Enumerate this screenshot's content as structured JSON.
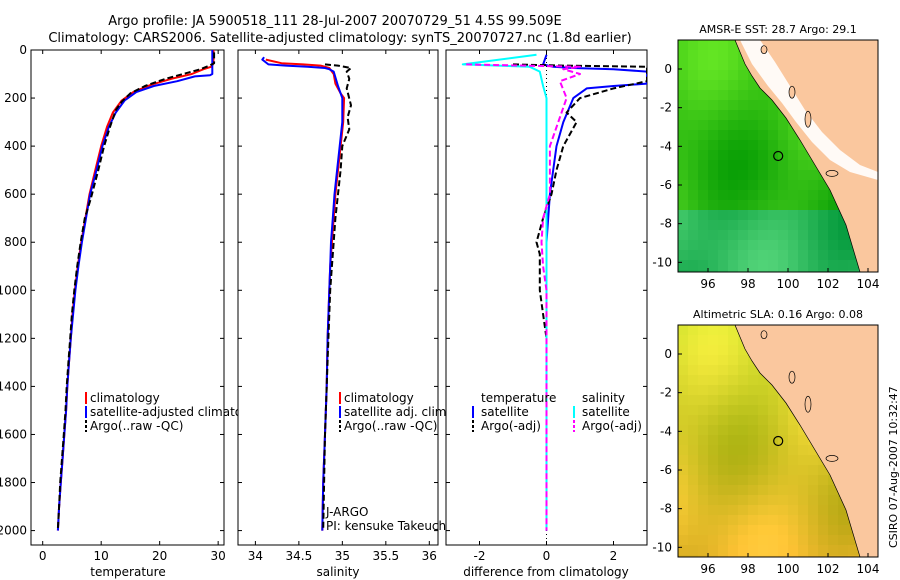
{
  "title_line1": "Argo profile: JA 5900518_111 28-Jul-2007 20070729_51 4.5S 99.509E",
  "title_line2": "Climatology: CARS2006. Satellite-adjusted climatology: synTS_20070727.nc (1.8d earlier)",
  "footer_right": "CSIRO 07-Aug-2007 10:32:47",
  "colors": {
    "climatology": "#ff0000",
    "satellite": "#0000ff",
    "argo": "#000000",
    "sal_satellite": "#00ffff",
    "sal_argo": "#ff00ff",
    "land": "#fac79e",
    "nodata": "#ffffff"
  },
  "chart_data": [
    {
      "type": "line",
      "xlabel": "temperature",
      "xlim": [
        -2,
        31
      ],
      "ylim": [
        0,
        2060
      ],
      "y_reversed": true,
      "xticks": [
        0,
        10,
        20,
        30
      ],
      "yticks": [
        0,
        200,
        400,
        600,
        800,
        1000,
        1200,
        1400,
        1600,
        1800,
        2000
      ],
      "legend": [
        "climatology",
        "satellite-adjusted climatology",
        "Argo(..raw -QC)"
      ],
      "series": [
        {
          "name": "climatology",
          "color": "#ff0000",
          "dash": false,
          "points": [
            [
              29.2,
              0
            ],
            [
              29.2,
              40
            ],
            [
              29.1,
              60
            ],
            [
              28.8,
              70
            ],
            [
              27.5,
              80
            ],
            [
              25.5,
              100
            ],
            [
              22,
              120
            ],
            [
              18.5,
              145
            ],
            [
              15.5,
              175
            ],
            [
              13.5,
              210
            ],
            [
              12,
              260
            ],
            [
              11,
              320
            ],
            [
              10,
              400
            ],
            [
              9,
              500
            ],
            [
              8,
              600
            ],
            [
              7.3,
              700
            ],
            [
              6.6,
              800
            ],
            [
              6,
              900
            ],
            [
              5.5,
              1000
            ],
            [
              5.1,
              1100
            ],
            [
              4.8,
              1200
            ],
            [
              4.5,
              1300
            ],
            [
              4.2,
              1400
            ],
            [
              4,
              1500
            ],
            [
              3.7,
              1600
            ],
            [
              3.4,
              1700
            ],
            [
              3.1,
              1800
            ],
            [
              2.8,
              1900
            ],
            [
              2.6,
              2000
            ]
          ]
        },
        {
          "name": "satellite-adjusted climatology",
          "color": "#0000ff",
          "dash": false,
          "points": [
            [
              29,
              0
            ],
            [
              29,
              60
            ],
            [
              29,
              100
            ],
            [
              28.6,
              105
            ],
            [
              26,
              110
            ],
            [
              23,
              130
            ],
            [
              19,
              150
            ],
            [
              16,
              175
            ],
            [
              14,
              210
            ],
            [
              12.5,
              260
            ],
            [
              11.3,
              320
            ],
            [
              10.2,
              400
            ],
            [
              9.2,
              500
            ],
            [
              8.1,
              600
            ],
            [
              7.4,
              700
            ],
            [
              6.7,
              800
            ],
            [
              6.1,
              900
            ],
            [
              5.6,
              1000
            ],
            [
              5.2,
              1100
            ],
            [
              4.8,
              1200
            ],
            [
              4.5,
              1300
            ],
            [
              4.2,
              1400
            ],
            [
              4,
              1500
            ],
            [
              3.7,
              1600
            ],
            [
              3.4,
              1700
            ],
            [
              3.1,
              1800
            ],
            [
              2.8,
              1900
            ],
            [
              2.6,
              2000
            ]
          ]
        },
        {
          "name": "Argo(..raw -QC)",
          "color": "#000000",
          "dash": true,
          "points": [
            [
              29.3,
              10
            ],
            [
              29.3,
              55
            ],
            [
              28.5,
              65
            ],
            [
              27,
              80
            ],
            [
              24,
              100
            ],
            [
              21,
              120
            ],
            [
              17.5,
              150
            ],
            [
              15,
              180
            ],
            [
              13.5,
              215
            ],
            [
              12.5,
              250
            ],
            [
              11.5,
              320
            ],
            [
              10.5,
              400
            ],
            [
              9.5,
              500
            ],
            [
              8.2,
              620
            ],
            [
              7.2,
              700
            ],
            [
              6.5,
              800
            ],
            [
              5.9,
              900
            ],
            [
              5.4,
              1000
            ],
            [
              5,
              1100
            ],
            [
              4.7,
              1200
            ],
            [
              4.4,
              1300
            ],
            [
              4.1,
              1400
            ],
            [
              3.9,
              1500
            ],
            [
              3.6,
              1600
            ],
            [
              3.3,
              1700
            ],
            [
              3,
              1800
            ],
            [
              2.8,
              1900
            ],
            [
              2.6,
              1990
            ]
          ]
        }
      ]
    },
    {
      "type": "line",
      "xlabel": "salinity",
      "xlim": [
        33.8,
        36.1
      ],
      "ylim": [
        0,
        2060
      ],
      "y_reversed": true,
      "xticks": [
        34,
        34.5,
        35,
        35.5,
        36
      ],
      "yticks": [
        0,
        200,
        400,
        600,
        800,
        1000,
        1200,
        1400,
        1600,
        1800,
        2000
      ],
      "legend": [
        "climatology",
        "satellite adj. clim.",
        "Argo(..raw -QC)"
      ],
      "annotations": [
        "J-ARGO",
        "PI: kensuke Takeuchi"
      ],
      "series": [
        {
          "name": "climatology",
          "color": "#ff0000",
          "dash": false,
          "points": [
            [
              34.12,
              40
            ],
            [
              34.3,
              55
            ],
            [
              34.55,
              60
            ],
            [
              34.75,
              65
            ],
            [
              34.85,
              75
            ],
            [
              34.9,
              100
            ],
            [
              34.92,
              140
            ],
            [
              34.98,
              180
            ],
            [
              35.02,
              200
            ],
            [
              35.01,
              300
            ],
            [
              34.98,
              400
            ],
            [
              34.95,
              500
            ],
            [
              34.92,
              600
            ],
            [
              34.9,
              700
            ],
            [
              34.88,
              800
            ],
            [
              34.86,
              900
            ],
            [
              34.85,
              1000
            ],
            [
              34.83,
              1200
            ],
            [
              34.82,
              1400
            ],
            [
              34.8,
              1600
            ],
            [
              34.78,
              1800
            ],
            [
              34.77,
              2000
            ]
          ]
        },
        {
          "name": "satellite adj. clim.",
          "color": "#0000ff",
          "dash": false,
          "points": [
            [
              34.1,
              30
            ],
            [
              34.08,
              40
            ],
            [
              34.15,
              60
            ],
            [
              34.35,
              65
            ],
            [
              34.6,
              70
            ],
            [
              34.8,
              75
            ],
            [
              34.85,
              80
            ],
            [
              34.9,
              90
            ],
            [
              34.95,
              150
            ],
            [
              35.0,
              200
            ],
            [
              35.0,
              300
            ],
            [
              34.97,
              400
            ],
            [
              34.94,
              500
            ],
            [
              34.91,
              600
            ],
            [
              34.89,
              700
            ],
            [
              34.87,
              800
            ],
            [
              34.86,
              900
            ],
            [
              34.85,
              1000
            ],
            [
              34.83,
              1200
            ],
            [
              34.82,
              1400
            ],
            [
              34.8,
              1600
            ],
            [
              34.78,
              1800
            ],
            [
              34.77,
              2000
            ]
          ]
        },
        {
          "name": "Argo(..raw -QC)",
          "color": "#000000",
          "dash": true,
          "points": [
            [
              34.8,
              60
            ],
            [
              34.95,
              65
            ],
            [
              35.1,
              75
            ],
            [
              35.05,
              90
            ],
            [
              35.08,
              120
            ],
            [
              35.05,
              160
            ],
            [
              35.1,
              230
            ],
            [
              35.06,
              280
            ],
            [
              35.08,
              330
            ],
            [
              35.0,
              400
            ],
            [
              34.98,
              500
            ],
            [
              34.95,
              600
            ],
            [
              34.92,
              700
            ],
            [
              34.9,
              800
            ],
            [
              34.88,
              900
            ],
            [
              34.86,
              1000
            ],
            [
              34.84,
              1200
            ],
            [
              34.82,
              1400
            ],
            [
              34.8,
              1600
            ],
            [
              34.79,
              1800
            ],
            [
              34.78,
              2000
            ]
          ]
        }
      ]
    },
    {
      "type": "line",
      "xlabel": "difference from climatology",
      "xlim": [
        -3,
        3
      ],
      "ylim": [
        0,
        2060
      ],
      "y_reversed": true,
      "xticks": [
        -2,
        0,
        2
      ],
      "yticks": [
        0,
        200,
        400,
        600,
        800,
        1000,
        1200,
        1400,
        1600,
        1800,
        2000
      ],
      "legend_headers": [
        "temperature",
        "salinity"
      ],
      "legend": [
        "satellite",
        "Argo(-adj)",
        "satellite",
        "Argo(-adj)"
      ],
      "series": [
        {
          "name": "temperature satellite",
          "color": "#0000ff",
          "dash": false,
          "points": [
            [
              0,
              20
            ],
            [
              -0.1,
              60
            ],
            [
              0.2,
              70
            ],
            [
              0.8,
              75
            ],
            [
              2,
              80
            ],
            [
              3,
              90
            ],
            [
              3,
              140
            ],
            [
              2,
              150
            ],
            [
              1.2,
              160
            ],
            [
              0.8,
              200
            ],
            [
              0.5,
              300
            ],
            [
              0.3,
              400
            ],
            [
              0.2,
              500
            ],
            [
              0.1,
              600
            ],
            [
              0.05,
              700
            ],
            [
              0,
              800
            ],
            [
              0,
              1000
            ],
            [
              0,
              1200
            ],
            [
              0,
              1400
            ],
            [
              0,
              1600
            ],
            [
              0,
              1800
            ],
            [
              0,
              2000
            ]
          ]
        },
        {
          "name": "temperature Argo(-adj)",
          "color": "#000000",
          "dash": true,
          "points": [
            [
              -1,
              60
            ],
            [
              0.5,
              65
            ],
            [
              3,
              70
            ],
            [
              3,
              130
            ],
            [
              2,
              160
            ],
            [
              1,
              200
            ],
            [
              0.6,
              260
            ],
            [
              0.9,
              300
            ],
            [
              0.5,
              400
            ],
            [
              0.3,
              500
            ],
            [
              0.15,
              600
            ],
            [
              -0.1,
              700
            ],
            [
              -0.3,
              800
            ],
            [
              -0.2,
              850
            ],
            [
              -0.2,
              1000
            ],
            [
              -0.1,
              1100
            ],
            [
              0,
              1200
            ],
            [
              0,
              1400
            ],
            [
              0,
              1600
            ],
            [
              0,
              1800
            ],
            [
              0,
              2000
            ]
          ]
        },
        {
          "name": "salinity satellite",
          "color": "#00ffff",
          "dash": false,
          "points": [
            [
              -0.3,
              20
            ],
            [
              -2.5,
              60
            ],
            [
              -0.5,
              70
            ],
            [
              -0.2,
              90
            ],
            [
              -0.1,
              150
            ],
            [
              0,
              200
            ],
            [
              0,
              300
            ],
            [
              0,
              400
            ],
            [
              0,
              500
            ],
            [
              0,
              600
            ],
            [
              0,
              700
            ],
            [
              0,
              800
            ],
            [
              0,
              1000
            ],
            [
              0,
              1200
            ],
            [
              0,
              1400
            ],
            [
              0,
              1600
            ],
            [
              0,
              1800
            ],
            [
              0,
              2000
            ]
          ]
        },
        {
          "name": "salinity Argo(-adj)",
          "color": "#ff00ff",
          "dash": true,
          "points": [
            [
              -2.4,
              60
            ],
            [
              1,
              70
            ],
            [
              0.5,
              80
            ],
            [
              1,
              100
            ],
            [
              0.4,
              130
            ],
            [
              0.6,
              200
            ],
            [
              0.1,
              400
            ],
            [
              0.1,
              600
            ],
            [
              -0.1,
              700
            ],
            [
              -0.15,
              800
            ],
            [
              -0.1,
              900
            ],
            [
              0,
              1000
            ],
            [
              0,
              1200
            ],
            [
              0,
              1400
            ],
            [
              0,
              1600
            ],
            [
              0,
              1800
            ],
            [
              0,
              2000
            ]
          ]
        }
      ]
    },
    {
      "type": "heatmap",
      "title": "AMSR-E SST: 28.7 Argo: 29.1",
      "xlim": [
        94.5,
        104.5
      ],
      "ylim": [
        -10.5,
        1.5
      ],
      "xticks": [
        96,
        98,
        100,
        102,
        104
      ],
      "yticks": [
        0,
        -2,
        -4,
        -6,
        -8,
        -10
      ],
      "argo_position": [
        99.51,
        -4.5
      ]
    },
    {
      "type": "heatmap",
      "title": "Altimetric SLA: 0.16 Argo: 0.08",
      "xlim": [
        94.5,
        104.5
      ],
      "ylim": [
        -10.5,
        1.5
      ],
      "xticks": [
        96,
        98,
        100,
        102,
        104
      ],
      "yticks": [
        0,
        -2,
        -4,
        -6,
        -8,
        -10
      ],
      "argo_position": [
        99.51,
        -4.5
      ]
    }
  ]
}
